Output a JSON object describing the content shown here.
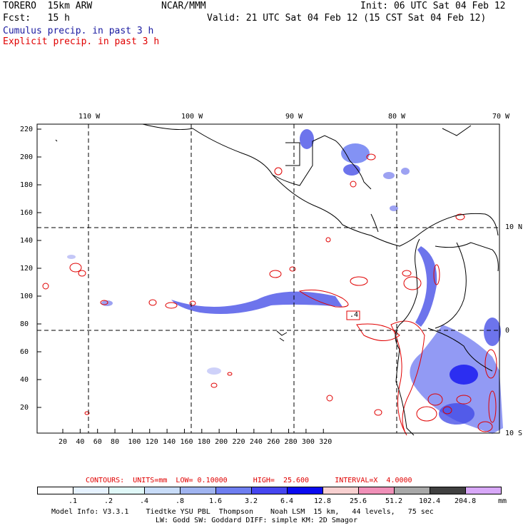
{
  "header": {
    "model": "TORERO  15km ARW",
    "center": "NCAR/MMM",
    "init": "Init: 06 UTC Sat 04 Feb 12",
    "fcst": "Fcst:   15 h",
    "valid": "Valid: 21 UTC Sat 04 Feb 12 (15 CST Sat 04 Feb 12)",
    "field1": "Cumulus precip. in past 3 h",
    "field2": "Explicit precip. in past 3 h"
  },
  "map": {
    "lon_labels": [
      "110 W",
      "100 W",
      "90 W",
      "80 W",
      "70 W"
    ],
    "lat_labels": [
      "10 N",
      "0",
      "10 S"
    ],
    "y_ticks": [
      "220",
      "200",
      "180",
      "160",
      "140",
      "120",
      "100",
      "80",
      "60",
      "40",
      "20"
    ],
    "x_ticks": [
      "20",
      "40",
      "60",
      "80",
      "100",
      "120",
      "140",
      "160",
      "180",
      "200",
      "220",
      "240",
      "260",
      "280",
      "300",
      "320"
    ],
    "contour_box_label": ".4"
  },
  "contours_info": {
    "text": "CONTOURS:  UNITS=mm  LOW= 0.10000      HIGH=  25.600      INTERVAL=X  4.0000"
  },
  "colorbar": {
    "colors": [
      "#ffffff",
      "#e6f2ff",
      "#e0f8f8",
      "#c8dcf8",
      "#a0b4f0",
      "#6e7ef0",
      "#4646f0",
      "#0a0af0",
      "#f8d0d0",
      "#f090b8",
      "#a8a8a8",
      "#404040",
      "#d8a8f8"
    ],
    "labels": [
      ".1",
      ".2",
      ".4",
      ".8",
      "1.6",
      "3.2",
      "6.4",
      "12.8",
      "25.6",
      "51.2",
      "102.4",
      "204.8"
    ],
    "units": "mm"
  },
  "footer": {
    "line1": "Model Info: V3.3.1    Tiedtke YSU PBL  Thompson    Noah LSM  15 km,   44 levels,   75 sec",
    "line2": "LW: Godd SW: Goddard DIFF: simple KM: 2D Smagor"
  }
}
